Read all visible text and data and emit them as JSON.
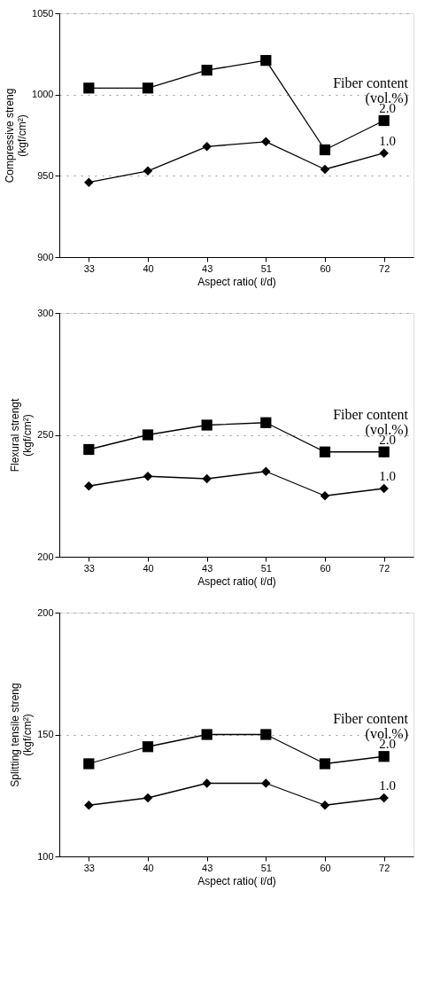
{
  "chart_data": [
    {
      "type": "line",
      "xlabel": "Aspect ratio( ℓ/d)",
      "ylabel": "Compressive streng\n(kgf/cm²)",
      "legend_title": "Fiber content\n(vol.%)",
      "categories": [
        "33",
        "40",
        "43",
        "51",
        "60",
        "72"
      ],
      "ylim": [
        900,
        1050
      ],
      "yticks": [
        900,
        950,
        1000,
        1050
      ],
      "grid": "y",
      "line_style": "solid",
      "series": [
        {
          "name": "2.0",
          "color": "#000000",
          "marker": "square",
          "values": [
            1004,
            1004,
            1015,
            1021,
            966,
            984
          ]
        },
        {
          "name": "1.0",
          "color": "#000000",
          "marker": "diamond",
          "values": [
            946,
            953,
            968,
            971,
            954,
            964
          ]
        }
      ]
    },
    {
      "type": "line",
      "xlabel": "Aspect ratio( ℓ/d)",
      "ylabel": "Flexural strengt\n(kgf/cm²)",
      "legend_title": "Fiber content\n(vol.%)",
      "categories": [
        "33",
        "40",
        "43",
        "51",
        "60",
        "72"
      ],
      "ylim": [
        200,
        300
      ],
      "yticks": [
        200,
        250,
        300
      ],
      "grid": "y",
      "line_style": "solid",
      "series": [
        {
          "name": "2.0",
          "color": "#000000",
          "marker": "square",
          "values": [
            244,
            250,
            254,
            255,
            243,
            243
          ]
        },
        {
          "name": "1.0",
          "color": "#000000",
          "marker": "diamond",
          "values": [
            229,
            233,
            232,
            235,
            225,
            228
          ]
        }
      ]
    },
    {
      "type": "line",
      "xlabel": "Aspect ratio( ℓ/d)",
      "ylabel": "Splitting tensile streng\n(kgf/cm²)",
      "legend_title": "Fiber content\n(vol.%)",
      "categories": [
        "33",
        "40",
        "43",
        "51",
        "60",
        "72"
      ],
      "ylim": [
        100,
        200
      ],
      "yticks": [
        100,
        150,
        200
      ],
      "grid": "y",
      "line_style": "solid",
      "series": [
        {
          "name": "2.0",
          "color": "#000000",
          "marker": "square",
          "values": [
            138,
            145,
            150,
            150,
            138,
            141
          ]
        },
        {
          "name": "1.0",
          "color": "#000000",
          "marker": "diamond",
          "values": [
            121,
            124,
            130,
            130,
            121,
            124
          ]
        }
      ]
    }
  ]
}
